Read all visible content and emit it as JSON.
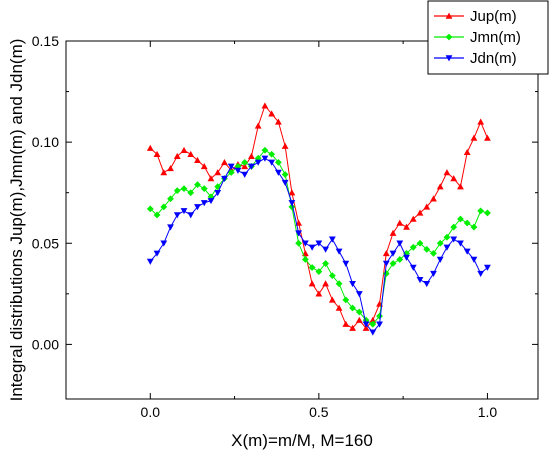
{
  "chart_data": {
    "type": "line",
    "title": "",
    "xlabel": "X(m)=m/M, M=160",
    "ylabel": "Integral distributions Jup(m),Jmn(m) and Jdn(m)",
    "xlim": [
      -0.25,
      1.15
    ],
    "ylim": [
      -0.027,
      0.15
    ],
    "x_ticks": [
      0.0,
      0.5,
      1.0
    ],
    "x_tick_labels": [
      "0.0",
      "0.5",
      "1.0"
    ],
    "y_ticks": [
      0.0,
      0.05,
      0.1,
      0.15
    ],
    "y_tick_labels": [
      "0.00",
      "0.05",
      "0.10",
      "0.15"
    ],
    "grid": false,
    "legend_position": "top-right",
    "series": [
      {
        "name": "Jup(m)",
        "color": "#ff0000",
        "marker": "triangle-up",
        "points": [
          [
            0.0,
            0.097
          ],
          [
            0.02,
            0.094
          ],
          [
            0.04,
            0.085
          ],
          [
            0.06,
            0.087
          ],
          [
            0.08,
            0.093
          ],
          [
            0.1,
            0.096
          ],
          [
            0.12,
            0.094
          ],
          [
            0.14,
            0.091
          ],
          [
            0.16,
            0.088
          ],
          [
            0.18,
            0.082
          ],
          [
            0.2,
            0.085
          ],
          [
            0.22,
            0.09
          ],
          [
            0.24,
            0.086
          ],
          [
            0.26,
            0.089
          ],
          [
            0.28,
            0.088
          ],
          [
            0.3,
            0.093
          ],
          [
            0.32,
            0.108
          ],
          [
            0.34,
            0.118
          ],
          [
            0.36,
            0.114
          ],
          [
            0.38,
            0.11
          ],
          [
            0.4,
            0.098
          ],
          [
            0.42,
            0.075
          ],
          [
            0.44,
            0.06
          ],
          [
            0.46,
            0.045
          ],
          [
            0.48,
            0.03
          ],
          [
            0.5,
            0.025
          ],
          [
            0.52,
            0.03
          ],
          [
            0.54,
            0.022
          ],
          [
            0.56,
            0.018
          ],
          [
            0.58,
            0.01
          ],
          [
            0.6,
            0.008
          ],
          [
            0.62,
            0.012
          ],
          [
            0.64,
            0.008
          ],
          [
            0.66,
            0.012
          ],
          [
            0.68,
            0.02
          ],
          [
            0.7,
            0.045
          ],
          [
            0.72,
            0.055
          ],
          [
            0.74,
            0.06
          ],
          [
            0.76,
            0.058
          ],
          [
            0.78,
            0.062
          ],
          [
            0.8,
            0.065
          ],
          [
            0.82,
            0.068
          ],
          [
            0.84,
            0.072
          ],
          [
            0.86,
            0.078
          ],
          [
            0.88,
            0.085
          ],
          [
            0.9,
            0.082
          ],
          [
            0.92,
            0.078
          ],
          [
            0.94,
            0.095
          ],
          [
            0.96,
            0.102
          ],
          [
            0.98,
            0.11
          ],
          [
            1.0,
            0.102
          ]
        ]
      },
      {
        "name": "Jmn(m)",
        "color": "#00ee00",
        "marker": "diamond",
        "points": [
          [
            0.0,
            0.067
          ],
          [
            0.02,
            0.064
          ],
          [
            0.04,
            0.068
          ],
          [
            0.06,
            0.072
          ],
          [
            0.08,
            0.076
          ],
          [
            0.1,
            0.077
          ],
          [
            0.12,
            0.075
          ],
          [
            0.14,
            0.079
          ],
          [
            0.16,
            0.077
          ],
          [
            0.18,
            0.073
          ],
          [
            0.2,
            0.078
          ],
          [
            0.22,
            0.082
          ],
          [
            0.24,
            0.085
          ],
          [
            0.26,
            0.088
          ],
          [
            0.28,
            0.09
          ],
          [
            0.3,
            0.088
          ],
          [
            0.32,
            0.092
          ],
          [
            0.34,
            0.096
          ],
          [
            0.36,
            0.094
          ],
          [
            0.38,
            0.09
          ],
          [
            0.4,
            0.084
          ],
          [
            0.42,
            0.068
          ],
          [
            0.44,
            0.05
          ],
          [
            0.46,
            0.042
          ],
          [
            0.48,
            0.038
          ],
          [
            0.5,
            0.036
          ],
          [
            0.52,
            0.04
          ],
          [
            0.54,
            0.034
          ],
          [
            0.56,
            0.03
          ],
          [
            0.58,
            0.022
          ],
          [
            0.6,
            0.018
          ],
          [
            0.62,
            0.016
          ],
          [
            0.64,
            0.012
          ],
          [
            0.66,
            0.01
          ],
          [
            0.68,
            0.014
          ],
          [
            0.7,
            0.035
          ],
          [
            0.72,
            0.04
          ],
          [
            0.74,
            0.042
          ],
          [
            0.76,
            0.045
          ],
          [
            0.78,
            0.048
          ],
          [
            0.8,
            0.05
          ],
          [
            0.82,
            0.047
          ],
          [
            0.84,
            0.045
          ],
          [
            0.86,
            0.05
          ],
          [
            0.88,
            0.053
          ],
          [
            0.9,
            0.058
          ],
          [
            0.92,
            0.062
          ],
          [
            0.94,
            0.06
          ],
          [
            0.96,
            0.058
          ],
          [
            0.98,
            0.066
          ],
          [
            1.0,
            0.065
          ]
        ]
      },
      {
        "name": "Jdn(m)",
        "color": "#0000ff",
        "marker": "triangle-down",
        "points": [
          [
            0.0,
            0.041
          ],
          [
            0.02,
            0.045
          ],
          [
            0.04,
            0.05
          ],
          [
            0.06,
            0.058
          ],
          [
            0.08,
            0.064
          ],
          [
            0.1,
            0.066
          ],
          [
            0.12,
            0.064
          ],
          [
            0.14,
            0.068
          ],
          [
            0.16,
            0.07
          ],
          [
            0.18,
            0.071
          ],
          [
            0.2,
            0.075
          ],
          [
            0.22,
            0.082
          ],
          [
            0.24,
            0.088
          ],
          [
            0.26,
            0.086
          ],
          [
            0.28,
            0.084
          ],
          [
            0.3,
            0.088
          ],
          [
            0.32,
            0.09
          ],
          [
            0.34,
            0.092
          ],
          [
            0.36,
            0.09
          ],
          [
            0.38,
            0.085
          ],
          [
            0.4,
            0.08
          ],
          [
            0.42,
            0.07
          ],
          [
            0.44,
            0.055
          ],
          [
            0.46,
            0.05
          ],
          [
            0.48,
            0.048
          ],
          [
            0.5,
            0.05
          ],
          [
            0.52,
            0.047
          ],
          [
            0.54,
            0.052
          ],
          [
            0.56,
            0.046
          ],
          [
            0.58,
            0.04
          ],
          [
            0.6,
            0.03
          ],
          [
            0.62,
            0.025
          ],
          [
            0.64,
            0.01
          ],
          [
            0.66,
            0.006
          ],
          [
            0.68,
            0.01
          ],
          [
            0.7,
            0.04
          ],
          [
            0.72,
            0.045
          ],
          [
            0.74,
            0.05
          ],
          [
            0.76,
            0.043
          ],
          [
            0.78,
            0.038
          ],
          [
            0.8,
            0.032
          ],
          [
            0.82,
            0.03
          ],
          [
            0.84,
            0.035
          ],
          [
            0.86,
            0.042
          ],
          [
            0.88,
            0.048
          ],
          [
            0.9,
            0.052
          ],
          [
            0.92,
            0.05
          ],
          [
            0.94,
            0.046
          ],
          [
            0.96,
            0.042
          ],
          [
            0.98,
            0.035
          ],
          [
            1.0,
            0.038
          ]
        ]
      }
    ]
  }
}
